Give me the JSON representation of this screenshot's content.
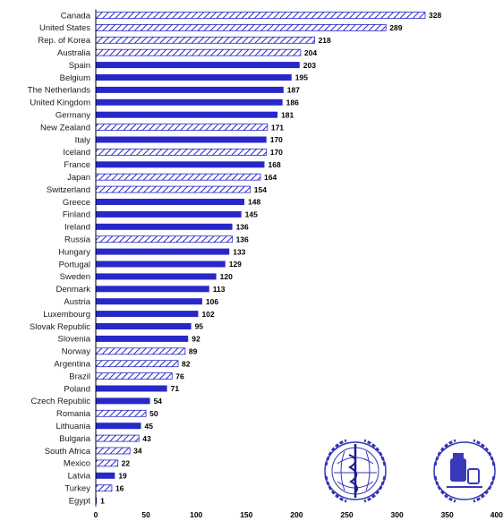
{
  "chart_data": {
    "type": "bar",
    "orientation": "horizontal",
    "title": "",
    "xlabel": "",
    "ylabel": "",
    "xlim": [
      0,
      400
    ],
    "x_ticks": [
      0,
      50,
      100,
      150,
      200,
      250,
      300,
      350,
      400
    ],
    "x_tick_labels": [
      "0",
      "50",
      "100",
      "150",
      "200",
      "250",
      "300",
      "350",
      "400"
    ],
    "grid": false,
    "legend": "none",
    "colors": {
      "solid": "#2828c8",
      "hatched_stroke": "#2828c8",
      "hatched_fill": "#ffffff"
    },
    "categories": [
      "Canada",
      "United States",
      "Rep. of Korea",
      "Australia",
      "Spain",
      "Belgium",
      "The Netherlands",
      "United Kingdom",
      "Germany",
      "New Zealand",
      "Italy",
      "Iceland",
      "France",
      "Japan",
      "Switzerland",
      "Greece",
      "Finland",
      "Ireland",
      "Russia",
      "Hungary",
      "Portugal",
      "Sweden",
      "Denmark",
      "Austria",
      "Luxembourg",
      "Slovak Republic",
      "Slovenia",
      "Norway",
      "Argentina",
      "Brazil",
      "Poland",
      "Czech Republic",
      "Romania",
      "Lithuania",
      "Bulgaria",
      "South Africa",
      "Mexico",
      "Latvia",
      "Turkey",
      "Egypt"
    ],
    "values": [
      328,
      289,
      218,
      204,
      203,
      195,
      187,
      186,
      181,
      171,
      170,
      170,
      168,
      164,
      154,
      148,
      145,
      136,
      136,
      133,
      129,
      120,
      113,
      106,
      102,
      95,
      92,
      89,
      82,
      76,
      71,
      54,
      50,
      45,
      43,
      34,
      22,
      19,
      16,
      1
    ],
    "patterns": [
      "hatched",
      "hatched",
      "hatched",
      "hatched",
      "solid",
      "solid",
      "solid",
      "solid",
      "solid",
      "hatched",
      "solid",
      "hatched",
      "solid",
      "hatched",
      "hatched",
      "solid",
      "solid",
      "solid",
      "hatched",
      "solid",
      "solid",
      "solid",
      "solid",
      "solid",
      "solid",
      "solid",
      "solid",
      "hatched",
      "hatched",
      "hatched",
      "solid",
      "solid",
      "hatched",
      "solid",
      "hatched",
      "hatched",
      "hatched",
      "solid",
      "hatched",
      "solid"
    ]
  },
  "logos": [
    {
      "name": "who-emblem-icon"
    },
    {
      "name": "pharmacy-emblem-icon"
    }
  ]
}
